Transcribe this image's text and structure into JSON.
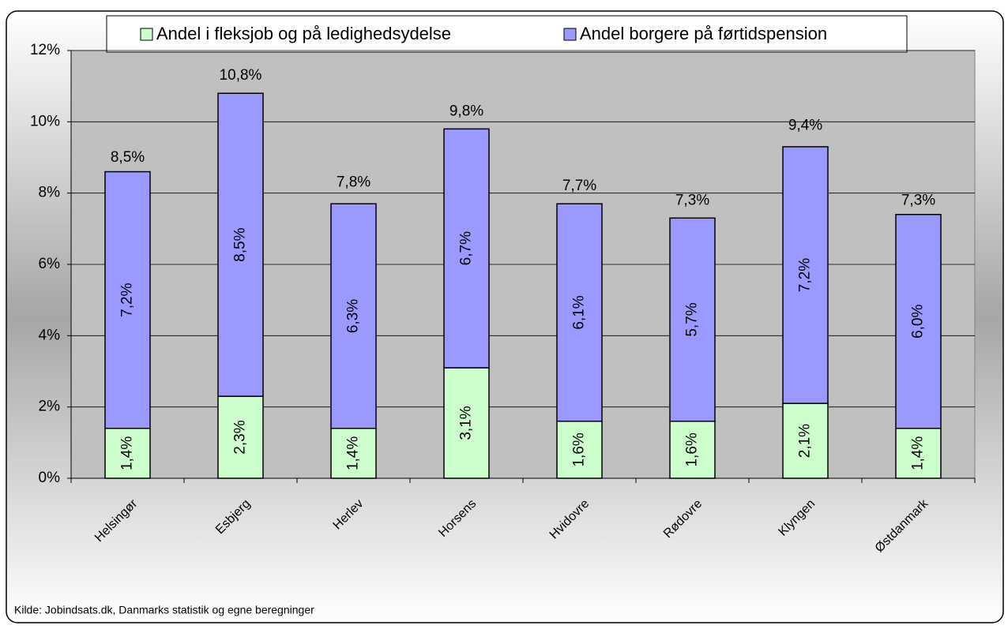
{
  "chart_data": {
    "type": "stacked-bar",
    "categories": [
      "Helsingør",
      "Esbjerg",
      "Herlev",
      "Horsens",
      "Hvidovre",
      "Rødovre",
      "Klyngen",
      "Østdanmark"
    ],
    "series": [
      {
        "name": "Andel i fleksjob og på ledighedsydelse",
        "color": "#ccffcc",
        "values": [
          1.4,
          2.3,
          1.4,
          3.1,
          1.6,
          1.6,
          2.1,
          1.4
        ],
        "value_labels": [
          "1,4%",
          "2,3%",
          "1,4%",
          "3,1%",
          "1,6%",
          "1,6%",
          "2,1%",
          "1,4%"
        ]
      },
      {
        "name": "Andel borgere på førtidspension",
        "color": "#9999ff",
        "values": [
          7.2,
          8.5,
          6.3,
          6.7,
          6.1,
          5.7,
          7.2,
          6.0
        ],
        "value_labels": [
          "7,2%",
          "8,5%",
          "6,3%",
          "6,7%",
          "6,1%",
          "5,7%",
          "7,2%",
          "6,0%"
        ]
      }
    ],
    "totals": {
      "values": [
        8.5,
        10.8,
        7.8,
        9.8,
        7.7,
        7.3,
        9.4,
        7.3
      ],
      "value_labels": [
        "8,5%",
        "10,8%",
        "7,8%",
        "9,8%",
        "7,7%",
        "7,3%",
        "9,4%",
        "7,3%"
      ]
    },
    "ylim": [
      0,
      12
    ],
    "yticks": [
      {
        "value": 0,
        "label": "0%"
      },
      {
        "value": 2,
        "label": "2%"
      },
      {
        "value": 4,
        "label": "4%"
      },
      {
        "value": 6,
        "label": "6%"
      },
      {
        "value": 8,
        "label": "8%"
      },
      {
        "value": 10,
        "label": "10%"
      },
      {
        "value": 12,
        "label": "12%"
      }
    ],
    "grid": true,
    "source": "Kilde: Jobindsats.dk, Danmarks statistik og egne beregninger"
  }
}
